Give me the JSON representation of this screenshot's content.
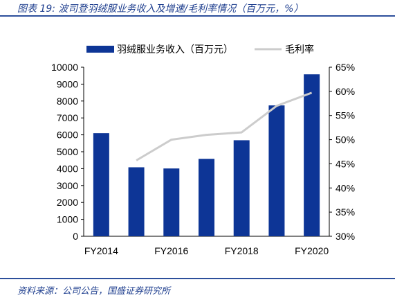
{
  "caption": "图表 19:  波司登羽绒服业务收入及增速/毛利率情况（百万元，%）",
  "source": "资料来源：公司公告，国盛证券研究所",
  "colors": {
    "bar": "#0d3596",
    "line": "#cccccc",
    "rule": "#2d4f9b",
    "text_blue": "#1f3f8f"
  },
  "chart_data": {
    "type": "bar",
    "categories": [
      "FY2014",
      "FY2015",
      "FY2016",
      "FY2017",
      "FY2018",
      "FY2019",
      "FY2020"
    ],
    "x_tick_labels": [
      "FY2014",
      "",
      "FY2016",
      "",
      "FY2018",
      "",
      "FY2020"
    ],
    "series": [
      {
        "name": "羽绒服业务收入（百万元）",
        "type": "bar",
        "axis": "left",
        "values": [
          6100,
          4080,
          4010,
          4580,
          5680,
          7740,
          9580
        ]
      },
      {
        "name": "毛利率",
        "type": "line",
        "axis": "right",
        "values": [
          null,
          45.7,
          50.0,
          51.0,
          51.5,
          57.0,
          59.7
        ]
      }
    ],
    "ylim_left": [
      0,
      10000
    ],
    "yticks_left": [
      "0",
      "1000",
      "2000",
      "3000",
      "4000",
      "5000",
      "6000",
      "7000",
      "8000",
      "9000",
      "10000"
    ],
    "ylim_right": [
      30,
      65
    ],
    "yticks_right": [
      "30%",
      "35%",
      "40%",
      "45%",
      "50%",
      "55%",
      "60%",
      "65%"
    ],
    "legend_position": "top",
    "grid": false
  }
}
